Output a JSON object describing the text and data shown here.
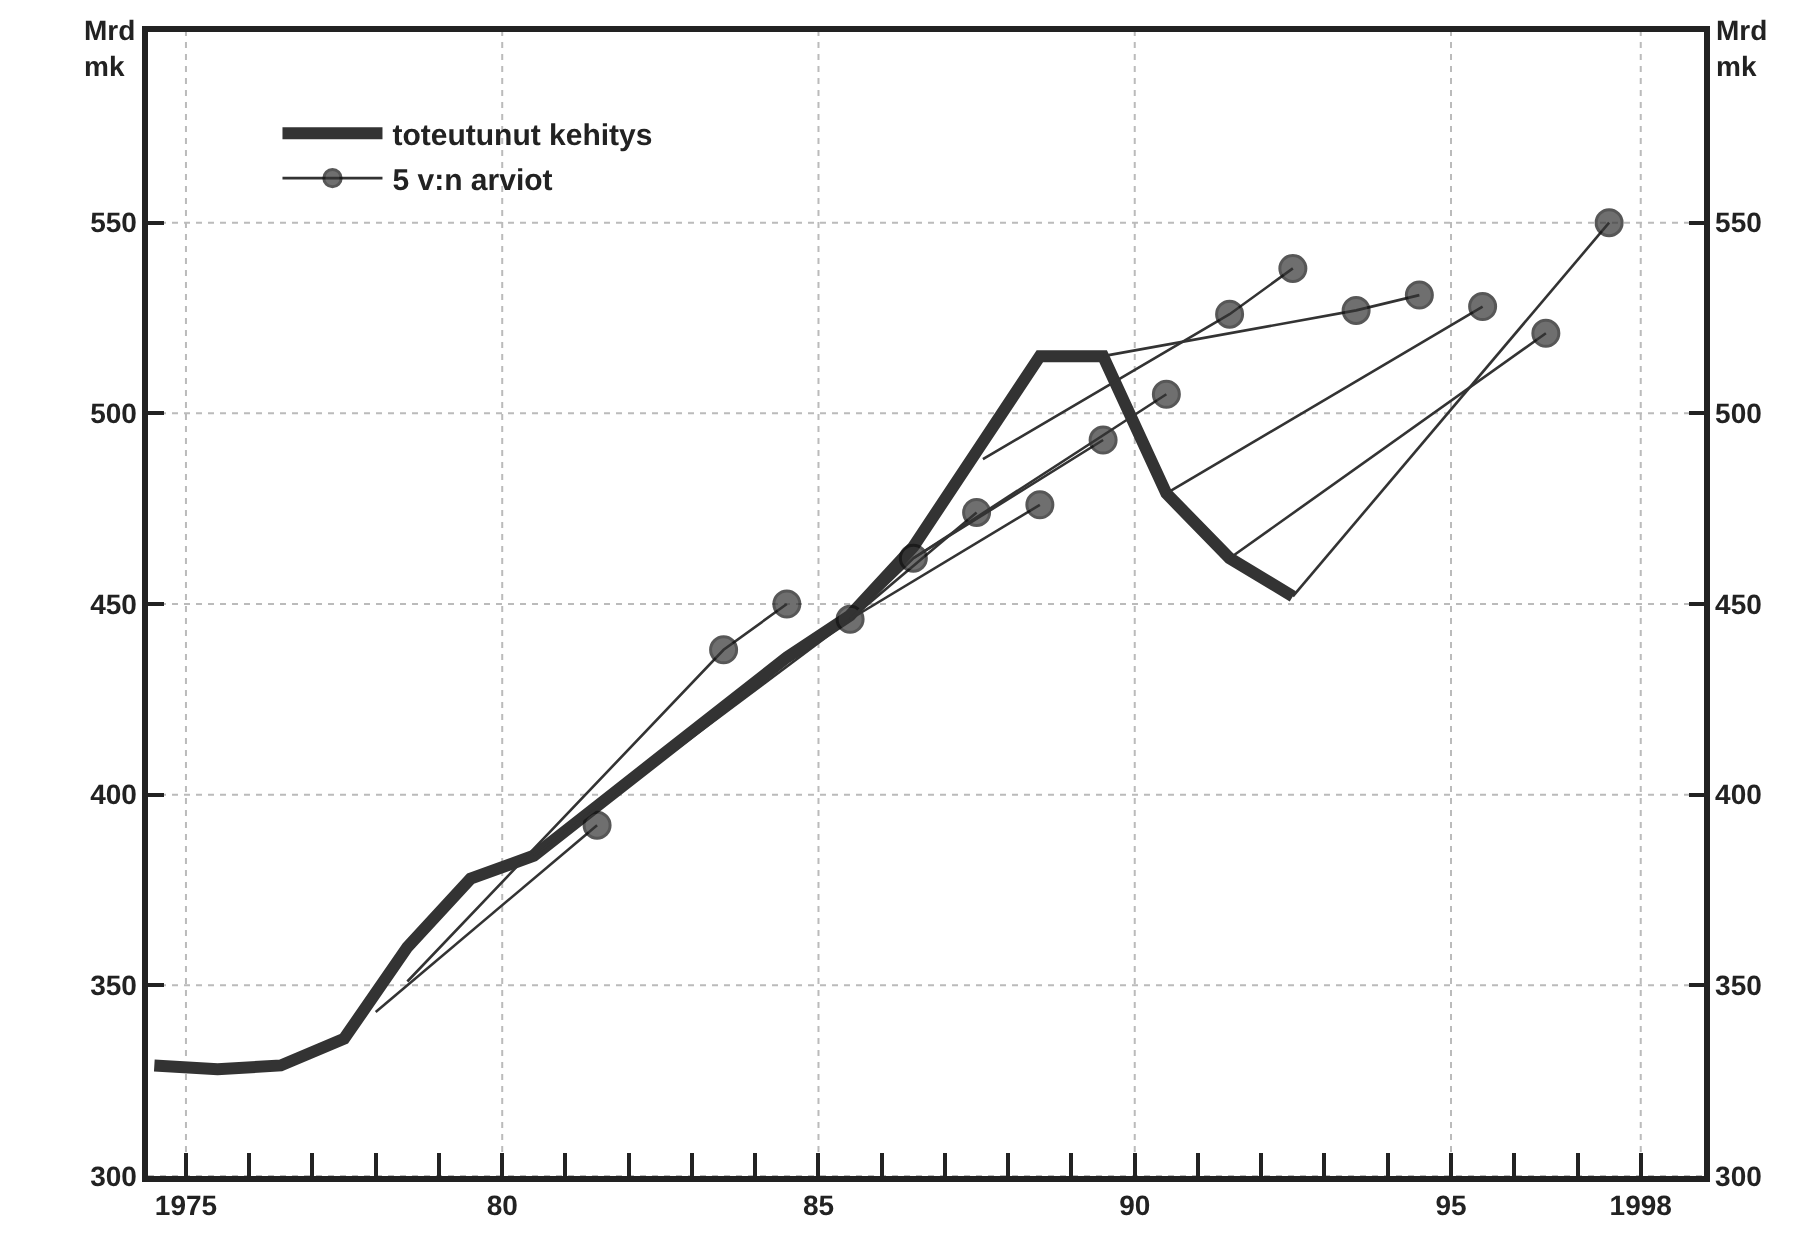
{
  "chart_data": {
    "type": "line",
    "ylabel": "Mrd\nmk",
    "y2label": "Mrd\nmk",
    "series": [
      {
        "name": "toteutunut kehitys",
        "color": "#333333",
        "marker": "none",
        "x": [
          1974.5,
          1975.5,
          1976.5,
          1977.5,
          1978.5,
          1979.5,
          1980.5,
          1981.5,
          1982.5,
          1983.5,
          1984.5,
          1985.5,
          1986.5,
          1987.5,
          1988.5,
          1989.5,
          1990.5,
          1991.5,
          1992.5
        ],
        "values": [
          329,
          328,
          329,
          336,
          360,
          378,
          384,
          397,
          410,
          423,
          436,
          447,
          465,
          490,
          515,
          515,
          479,
          462,
          452
        ]
      },
      {
        "name": "5 v:n arviot",
        "color": "#333333",
        "marker": "circle",
        "x": [
          1978.5,
          1983.5,
          1984.5
        ],
        "values": [
          351,
          438,
          450
        ]
      },
      {
        "color": "#333333",
        "marker": "circle",
        "x": [
          1978.0,
          1981.5
        ],
        "values": [
          343,
          392
        ]
      },
      {
        "color": "#333333",
        "marker": "circle",
        "x": [
          1980.5,
          1985.5
        ],
        "values": [
          384,
          446
        ]
      },
      {
        "color": "#333333",
        "marker": "circle",
        "x": [
          1985.5,
          1987.5
        ],
        "values": [
          446,
          474
        ]
      },
      {
        "color": "#333333",
        "marker": "circle",
        "x": [
          1985.5,
          1988.5
        ],
        "values": [
          446,
          476
        ]
      },
      {
        "color": "#333333",
        "marker": "circle",
        "x": [
          1985.5,
          1986.5,
          1989.5
        ],
        "values": [
          446,
          462,
          493
        ]
      },
      {
        "color": "#333333",
        "marker": "circle",
        "x": [
          1986.5,
          1990.5
        ],
        "values": [
          462,
          505
        ]
      },
      {
        "color": "#333333",
        "marker": "circle",
        "x": [
          1987.6,
          1991.5,
          1992.5
        ],
        "values": [
          488,
          526,
          538
        ]
      },
      {
        "color": "#333333",
        "marker": "circle",
        "x": [
          1989.5,
          1993.5,
          1994.5
        ],
        "values": [
          515,
          527,
          531
        ]
      },
      {
        "color": "#333333",
        "marker": "circle",
        "x": [
          1990.5,
          1995.5
        ],
        "values": [
          479,
          528
        ]
      },
      {
        "color": "#333333",
        "marker": "circle",
        "x": [
          1991.5,
          1996.5
        ],
        "values": [
          462,
          521
        ]
      },
      {
        "color": "#333333",
        "marker": "circle",
        "x": [
          1992.5,
          1997.5
        ],
        "values": [
          452,
          550
        ]
      }
    ],
    "xlim": [
      1974.4,
      1999.0
    ],
    "xticks": [
      {
        "value": 1975,
        "label": "1975"
      },
      {
        "value": 1976,
        "label": null
      },
      {
        "value": 1977,
        "label": null
      },
      {
        "value": 1978,
        "label": null
      },
      {
        "value": 1979,
        "label": null
      },
      {
        "value": 1980,
        "label": "80"
      },
      {
        "value": 1981,
        "label": null
      },
      {
        "value": 1982,
        "label": null
      },
      {
        "value": 1983,
        "label": null
      },
      {
        "value": 1984,
        "label": null
      },
      {
        "value": 1985,
        "label": "85"
      },
      {
        "value": 1986,
        "label": null
      },
      {
        "value": 1987,
        "label": null
      },
      {
        "value": 1988,
        "label": null
      },
      {
        "value": 1989,
        "label": null
      },
      {
        "value": 1990,
        "label": "90"
      },
      {
        "value": 1991,
        "label": null
      },
      {
        "value": 1992,
        "label": null
      },
      {
        "value": 1993,
        "label": null
      },
      {
        "value": 1994,
        "label": null
      },
      {
        "value": 1995,
        "label": "95"
      },
      {
        "value": 1996,
        "label": null
      },
      {
        "value": 1997,
        "label": null
      },
      {
        "value": 1998,
        "label": "1998"
      }
    ],
    "ylim": [
      300,
      600
    ],
    "yticks": [
      300,
      350,
      400,
      450,
      500,
      550
    ],
    "y2lim": [
      300,
      600
    ],
    "y2ticks": [
      300,
      350,
      400,
      450,
      500,
      550
    ],
    "grid": true,
    "legend": "top left"
  }
}
